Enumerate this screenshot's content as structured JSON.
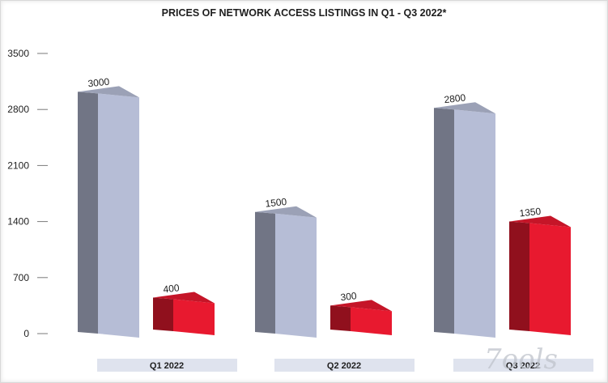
{
  "chart_data": {
    "type": "bar",
    "title": "PRICES OF NETWORK ACCESS LISTINGS IN Q1 - Q3 2022*",
    "categories": [
      "Q1 2022",
      "Q2 2022",
      "Q3 2022"
    ],
    "series": [
      {
        "values": [
          3000,
          1500,
          2800
        ],
        "color": "#b6bdd6"
      },
      {
        "values": [
          400,
          300,
          1350
        ],
        "color": "#e8192f"
      }
    ],
    "yticks": [
      0,
      700,
      1400,
      2100,
      2800,
      3500
    ],
    "ylim": [
      0,
      3500
    ],
    "grid": false
  },
  "watermark": "7ools"
}
